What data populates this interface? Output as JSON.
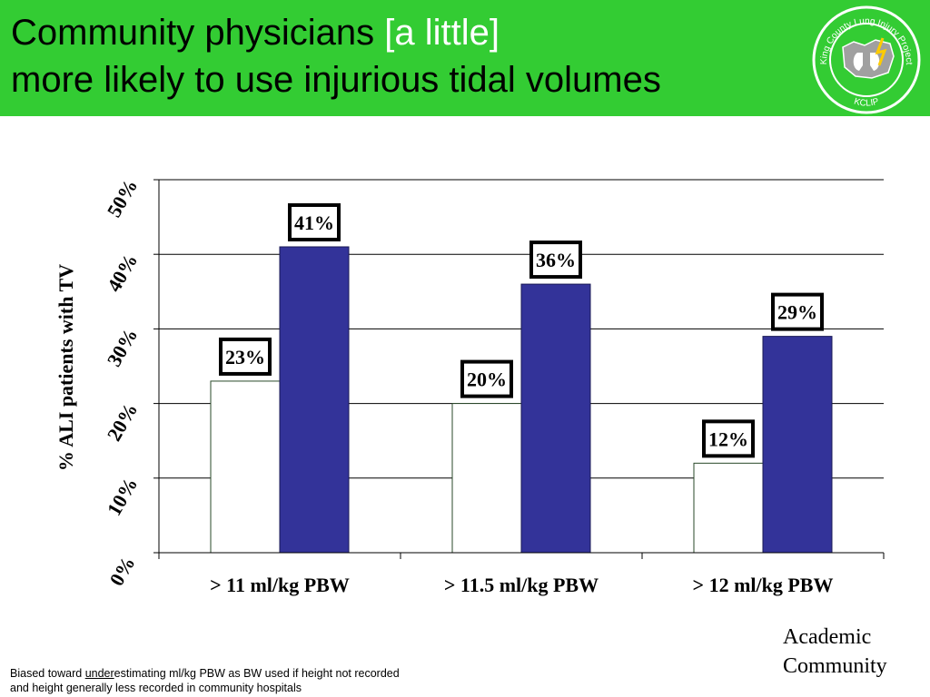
{
  "header": {
    "title_part1": "Community physicians ",
    "title_highlight": "[a little]",
    "title_line2": "more likely to use injurious tidal volumes",
    "background_color": "#33cc33",
    "highlight_color": "#ffffff"
  },
  "logo": {
    "text_top": "King County Lung Injury Project",
    "text_bottom": "KCLIP"
  },
  "chart_data": {
    "type": "bar",
    "title": "",
    "xlabel": "",
    "ylabel": "% ALI patients with TV",
    "categories": [
      "> 11 ml/kg PBW",
      "> 11.5 ml/kg PBW",
      "> 12 ml/kg PBW"
    ],
    "series": [
      {
        "name": "Academic",
        "values": [
          23,
          20,
          12
        ],
        "labels": [
          "23%",
          "20%",
          "12%"
        ],
        "color": "#ffffff"
      },
      {
        "name": "Community",
        "values": [
          41,
          36,
          29
        ],
        "labels": [
          "41%",
          "36%",
          "29%"
        ],
        "color": "#333399"
      }
    ],
    "y_ticks": [
      "0%",
      "10%",
      "20%",
      "30%",
      "40%",
      "50%"
    ],
    "ylim": [
      0,
      50
    ],
    "grid": true,
    "legend_placement": "bottom-right"
  },
  "footnote": {
    "part1": "Biased toward ",
    "underlined": "under",
    "part2": "estimating ml/kg PBW as BW used if height not recorded",
    "line2": "and height generally less recorded in community hospitals"
  }
}
